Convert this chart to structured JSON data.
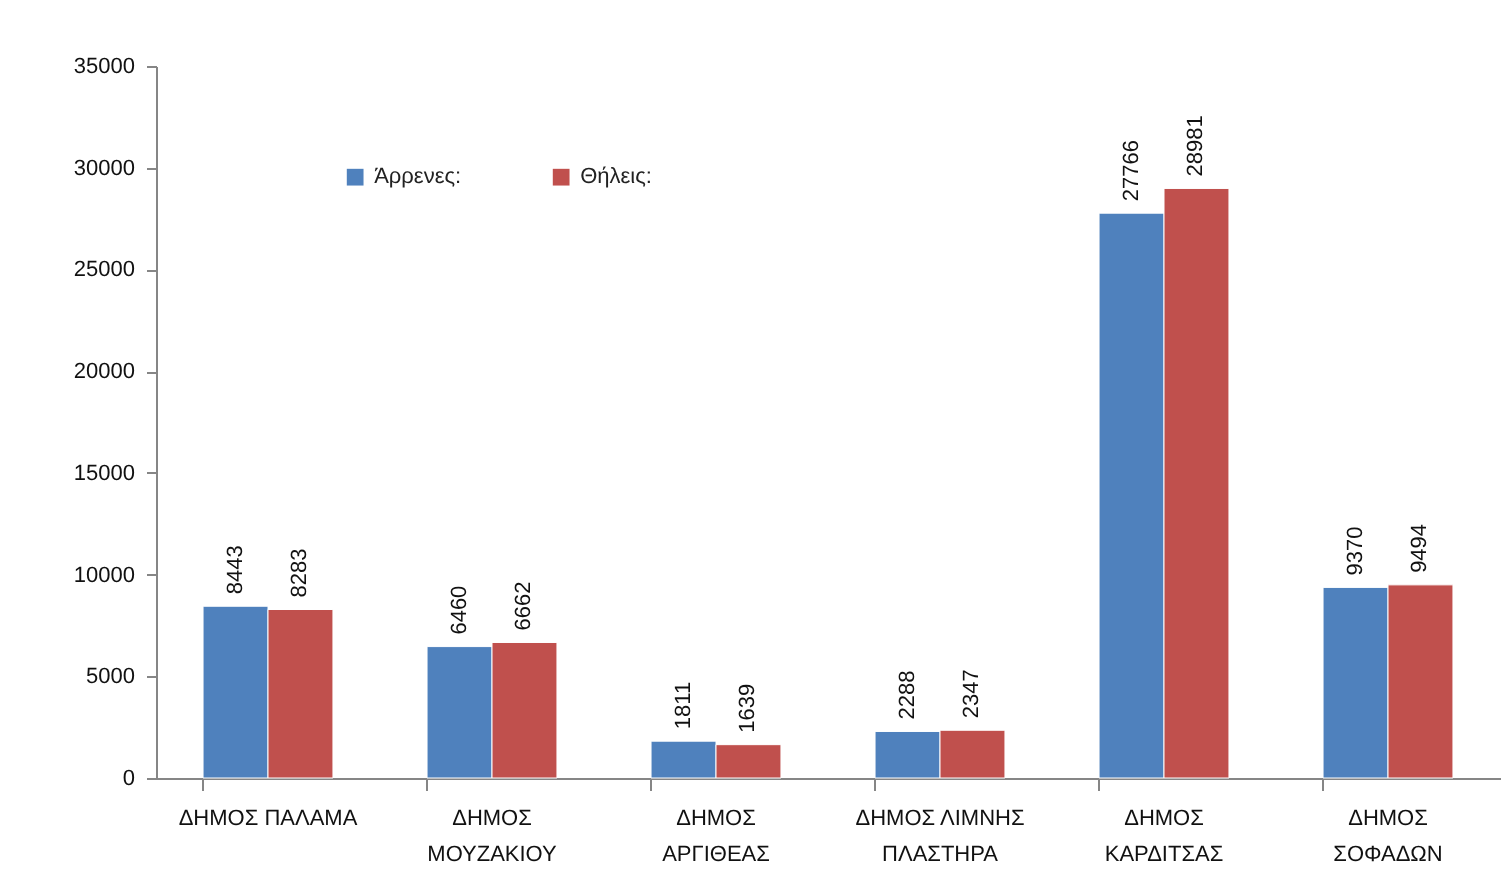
{
  "chart_data": {
    "type": "bar",
    "categories": [
      "ΔΗΜΟΣ ΠΑΛΑΜΑ",
      "ΔΗΜΟΣ ΜΟΥΖΑΚΙΟΥ",
      "ΔΗΜΟΣ ΑΡΓΙΘΕΑΣ",
      "ΔΗΜΟΣ ΛΙΜΝΗΣ ΠΛΑΣΤΗΡΑ",
      "ΔΗΜΟΣ ΚΑΡΔΙΤΣΑΣ",
      "ΔΗΜΟΣ ΣΟΦΑΔΩΝ"
    ],
    "series": [
      {
        "name": "Άρρενες:",
        "color": "#4f81bd",
        "values": [
          8443,
          6460,
          1811,
          2288,
          27766,
          9370
        ]
      },
      {
        "name": "Θήλεις:",
        "color": "#c0504d",
        "values": [
          8283,
          6662,
          1639,
          2347,
          28981,
          9494
        ]
      }
    ],
    "ylim": [
      0,
      35000
    ],
    "yticks": [
      0,
      5000,
      10000,
      15000,
      20000,
      25000,
      30000,
      35000
    ],
    "data_labels": true,
    "legend": "top left"
  }
}
